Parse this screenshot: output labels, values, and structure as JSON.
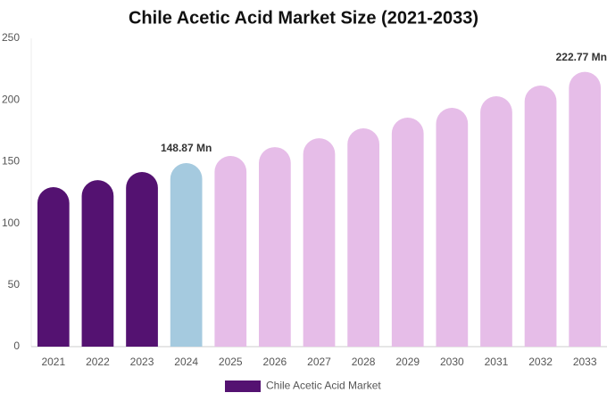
{
  "chart_data": {
    "type": "bar",
    "title": "Chile Acetic Acid Market Size (2021-2033)",
    "categories": [
      "2021",
      "2022",
      "2023",
      "2024",
      "2025",
      "2026",
      "2027",
      "2028",
      "2029",
      "2030",
      "2031",
      "2032",
      "2033"
    ],
    "series": [
      {
        "name": "Chile Acetic Acid Market",
        "color": "#541271",
        "values": [
          129.3,
          135,
          141.6,
          148.87,
          154.6,
          161.8,
          169,
          177,
          185.7,
          193.6,
          203,
          211.7,
          222.77
        ],
        "value_labels": [
          null,
          null,
          null,
          "148.87 Mn",
          null,
          null,
          null,
          null,
          null,
          null,
          null,
          null,
          "222.77 Mn"
        ],
        "colors": [
          "#541271",
          "#541271",
          "#541271",
          "#a5cadf",
          "#e6bde8",
          "#e6bde8",
          "#e6bde8",
          "#e6bde8",
          "#e6bde8",
          "#e6bde8",
          "#e6bde8",
          "#e6bde8",
          "#e6bde8"
        ]
      }
    ],
    "ylim": [
      0,
      250
    ],
    "yticks": [
      0,
      50,
      100,
      150,
      200,
      250
    ],
    "grid": false
  }
}
